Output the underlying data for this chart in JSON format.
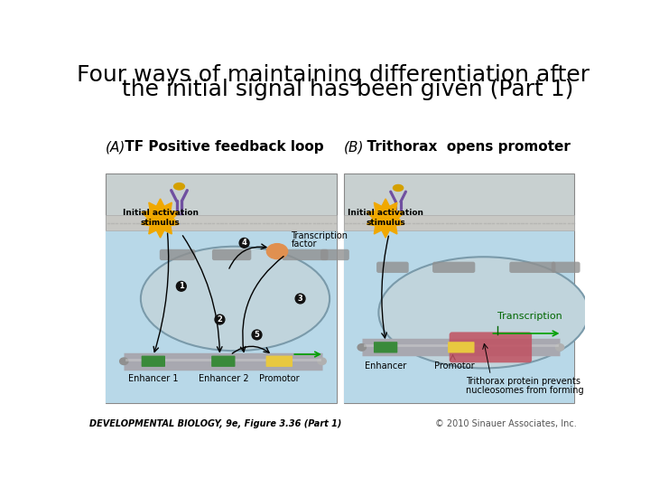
{
  "title_line1": "Four ways of maintaining differentiation after",
  "title_line2": "    the initial signal has been given (Part 1)",
  "title_fontsize": 18,
  "title_color": "#000000",
  "bg_color": "#ffffff",
  "panel_A_label_paren": "(A)",
  "panel_A_label_rest": " TF Positive feedback loop",
  "panel_B_label_paren": "(B)",
  "panel_B_label_rest": "  Trithorax  opens promoter",
  "panel_label_fontsize": 11,
  "footer_left": "DEVELOPMENTAL BIOLOGY, 9e, Figure 3.36 (Part 1)",
  "footer_right": "© 2010 Sinauer Associates, Inc.",
  "footer_fontsize": 7,
  "cell_bg": "#b8d8e8",
  "cytoplasm_bg": "#c8d8d8",
  "membrane_color": "#c8c8c8",
  "nucleus_border": "#8a9aaa",
  "dna_color": "#a0a0a8",
  "enhancer_color": "#3a8a3a",
  "promotor_color": "#e8c840",
  "tf_body_color": "#e09050",
  "stimulus_color": "#f0a800",
  "receptor_color": "#7050a0",
  "ligand_color": "#d4a000",
  "arrow_color": "#000000",
  "transcription_arrow_color": "#00a000",
  "panel_border_color": "#888888",
  "nucleosome_color": "#b05060",
  "trithorax_red": "#c05060"
}
